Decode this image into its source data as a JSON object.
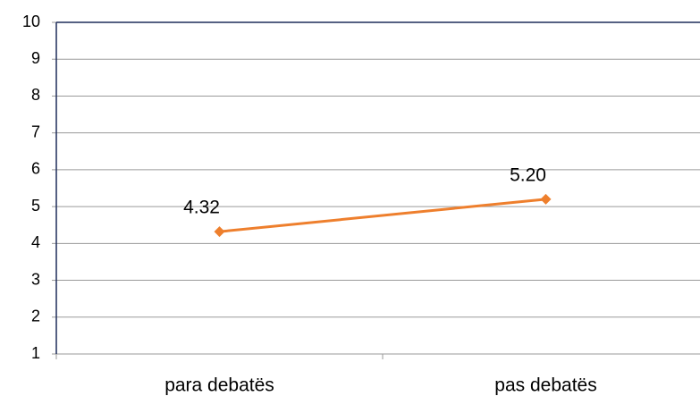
{
  "chart_data": {
    "type": "line",
    "categories": [
      "para debatës",
      "pas debatës"
    ],
    "series": [
      {
        "values": [
          4.32,
          5.2
        ],
        "value_labels": [
          "4.32",
          "5.20"
        ],
        "color": "#ee7f2d"
      }
    ],
    "ylim": [
      1,
      10
    ],
    "yticks": [
      1,
      2,
      3,
      4,
      5,
      6,
      7,
      8,
      9,
      10
    ],
    "grid": true
  }
}
